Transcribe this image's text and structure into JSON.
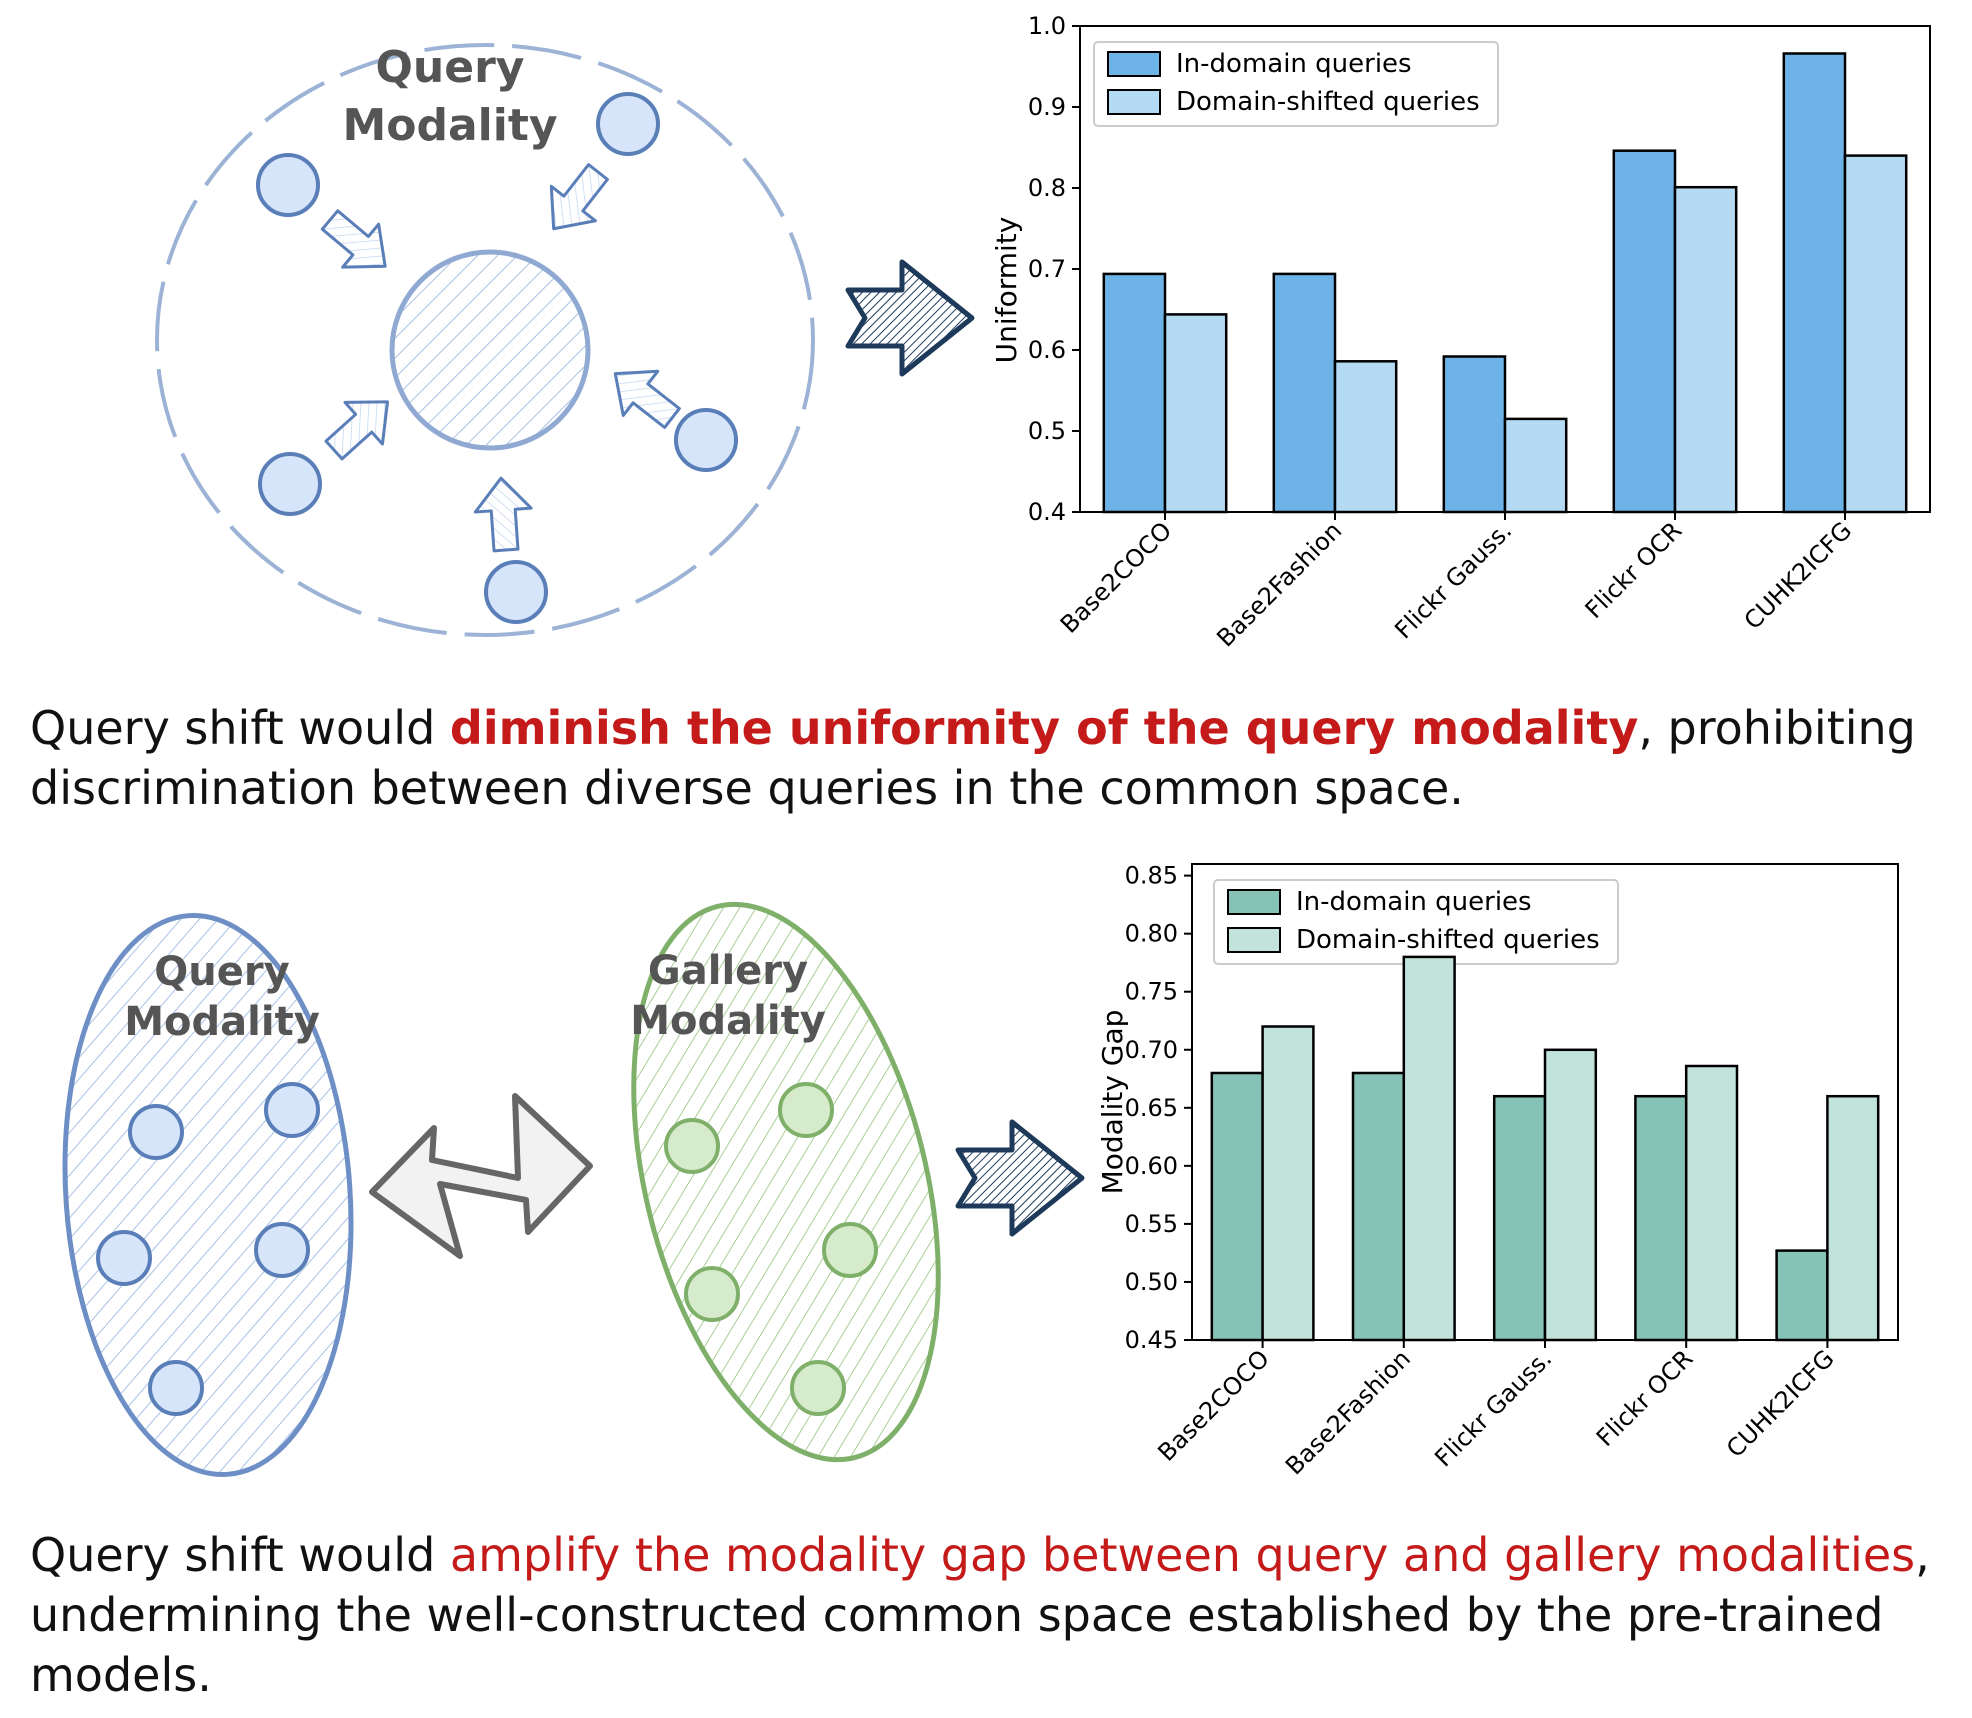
{
  "diagram_top": {
    "label_line1": "Query",
    "label_line2": "Modality"
  },
  "diagram_bottom": {
    "query_line1": "Query",
    "query_line2": "Modality",
    "gallery_line1": "Gallery",
    "gallery_line2": "Modality"
  },
  "caption_top": {
    "before": "Query shift would ",
    "highlight": "diminish the uniformity of the query modality",
    "after": ", prohibiting discrimination between diverse queries in the common space."
  },
  "caption_bottom": {
    "before": "Query shift would ",
    "highlight": "amplify the modality gap between query and gallery modalities",
    "after": ", undermining the well-constructed common space established by the pre-trained models."
  },
  "colors": {
    "top_in": "#6db3e8",
    "top_shift": "#b5daf3",
    "bottom_in": "#86c2b6",
    "bottom_shift": "#c2e2dc",
    "highlight": "#c41a1a"
  },
  "chart_data": [
    {
      "type": "bar",
      "categories": [
        "Base2COCO",
        "Base2Fashion",
        "Flickr Gauss.",
        "Flickr OCR",
        "CUHK2ICFG"
      ],
      "series": [
        {
          "name": "In-domain queries",
          "values": [
            0.694,
            0.694,
            0.592,
            0.846,
            0.966
          ]
        },
        {
          "name": "Domain-shifted queries",
          "values": [
            0.644,
            0.586,
            0.515,
            0.801,
            0.84
          ]
        }
      ],
      "ylabel": "Uniformity",
      "ylim": [
        0.4,
        1.0
      ],
      "yticks": [
        "0.4",
        "0.5",
        "0.6",
        "0.7",
        "0.8",
        "0.9",
        "1.0"
      ],
      "legend": "top-left",
      "grid": false
    },
    {
      "type": "bar",
      "categories": [
        "Base2COCO",
        "Base2Fashion",
        "Flickr Gauss.",
        "Flickr OCR",
        "CUHK2ICFG"
      ],
      "series": [
        {
          "name": "In-domain queries",
          "values": [
            0.68,
            0.68,
            0.66,
            0.66,
            0.527
          ]
        },
        {
          "name": "Domain-shifted queries",
          "values": [
            0.72,
            0.78,
            0.7,
            0.686,
            0.66
          ]
        }
      ],
      "ylabel": "Modality Gap",
      "ylim": [
        0.45,
        0.86
      ],
      "yticks": [
        "0.45",
        "0.50",
        "0.55",
        "0.60",
        "0.65",
        "0.70",
        "0.75",
        "0.80",
        "0.85"
      ],
      "legend": "top-left",
      "grid": false
    }
  ]
}
